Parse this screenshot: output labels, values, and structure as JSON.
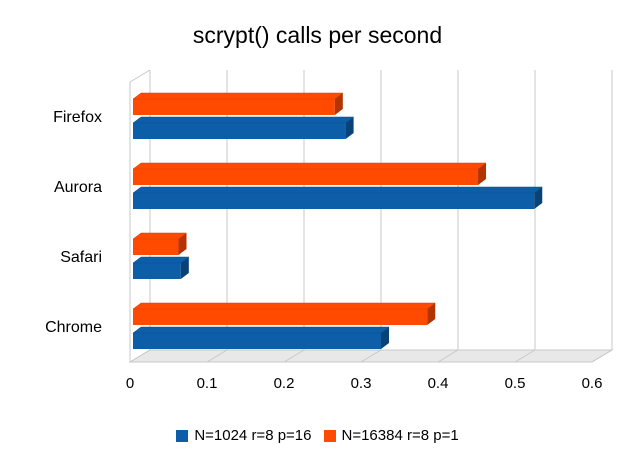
{
  "chart_data": {
    "type": "bar",
    "orientation": "horizontal",
    "style": "3d",
    "title": "scrypt() calls per second",
    "xlabel": "",
    "ylabel": "",
    "categories": [
      "Firefox",
      "Aurora",
      "Safari",
      "Chrome"
    ],
    "series": [
      {
        "name": "N=1024 r=8 p=16",
        "color": "#0d5ea8",
        "values": [
          0.28,
          0.525,
          0.066,
          0.326
        ]
      },
      {
        "name": "N=16384 r=8 p=1",
        "color": "#ff4a00",
        "values": [
          0.266,
          0.452,
          0.063,
          0.386
        ]
      }
    ],
    "xlim": [
      0,
      0.6
    ],
    "xticks": [
      "0",
      "0.1",
      "0.2",
      "0.3",
      "0.4",
      "0.5",
      "0.6"
    ],
    "grid": true,
    "legend_position": "bottom"
  }
}
